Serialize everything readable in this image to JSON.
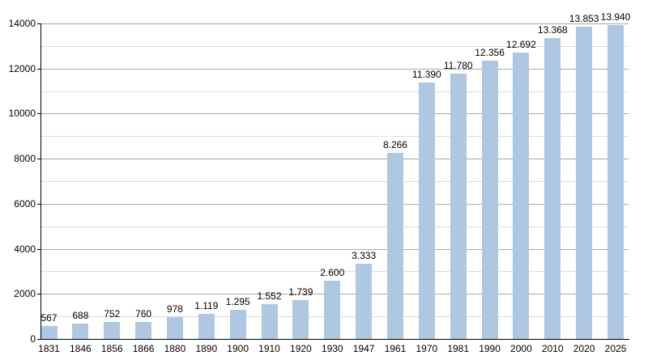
{
  "chart_data": {
    "type": "bar",
    "title": "",
    "xlabel": "",
    "ylabel": "",
    "categories": [
      "1831",
      "1846",
      "1856",
      "1866",
      "1880",
      "1890",
      "1900",
      "1910",
      "1920",
      "1930",
      "1947",
      "1961",
      "1970",
      "1981",
      "1990",
      "2000",
      "2010",
      "2020",
      "2025"
    ],
    "values": [
      567,
      688,
      752,
      760,
      978,
      1119,
      1295,
      1552,
      1739,
      2600,
      3333,
      8266,
      11390,
      11780,
      12356,
      12692,
      13368,
      13853,
      13940
    ],
    "value_labels": [
      "567",
      "688",
      "752",
      "760",
      "978",
      "1.119",
      "1.295",
      "1.552",
      "1.739",
      "2.600",
      "3.333",
      "8.266",
      "11.390",
      "11.780",
      "12.356",
      "12.692",
      "13.368",
      "13.853",
      "13.940"
    ],
    "ylim": [
      0,
      14000
    ],
    "y_major_tick_step": 2000,
    "y_minor_tick_step": 1000,
    "y_tick_labels": [
      "0",
      "2000",
      "4000",
      "6000",
      "8000",
      "10000",
      "12000",
      "14000"
    ],
    "legend": null,
    "grid": "on",
    "colors": {
      "bar_fill": "#aec8e1",
      "major_grid": "#a8a8a8",
      "minor_grid": "#dcdcdc",
      "axis": "#000000",
      "text": "#000000",
      "background": "#ffffff"
    }
  }
}
